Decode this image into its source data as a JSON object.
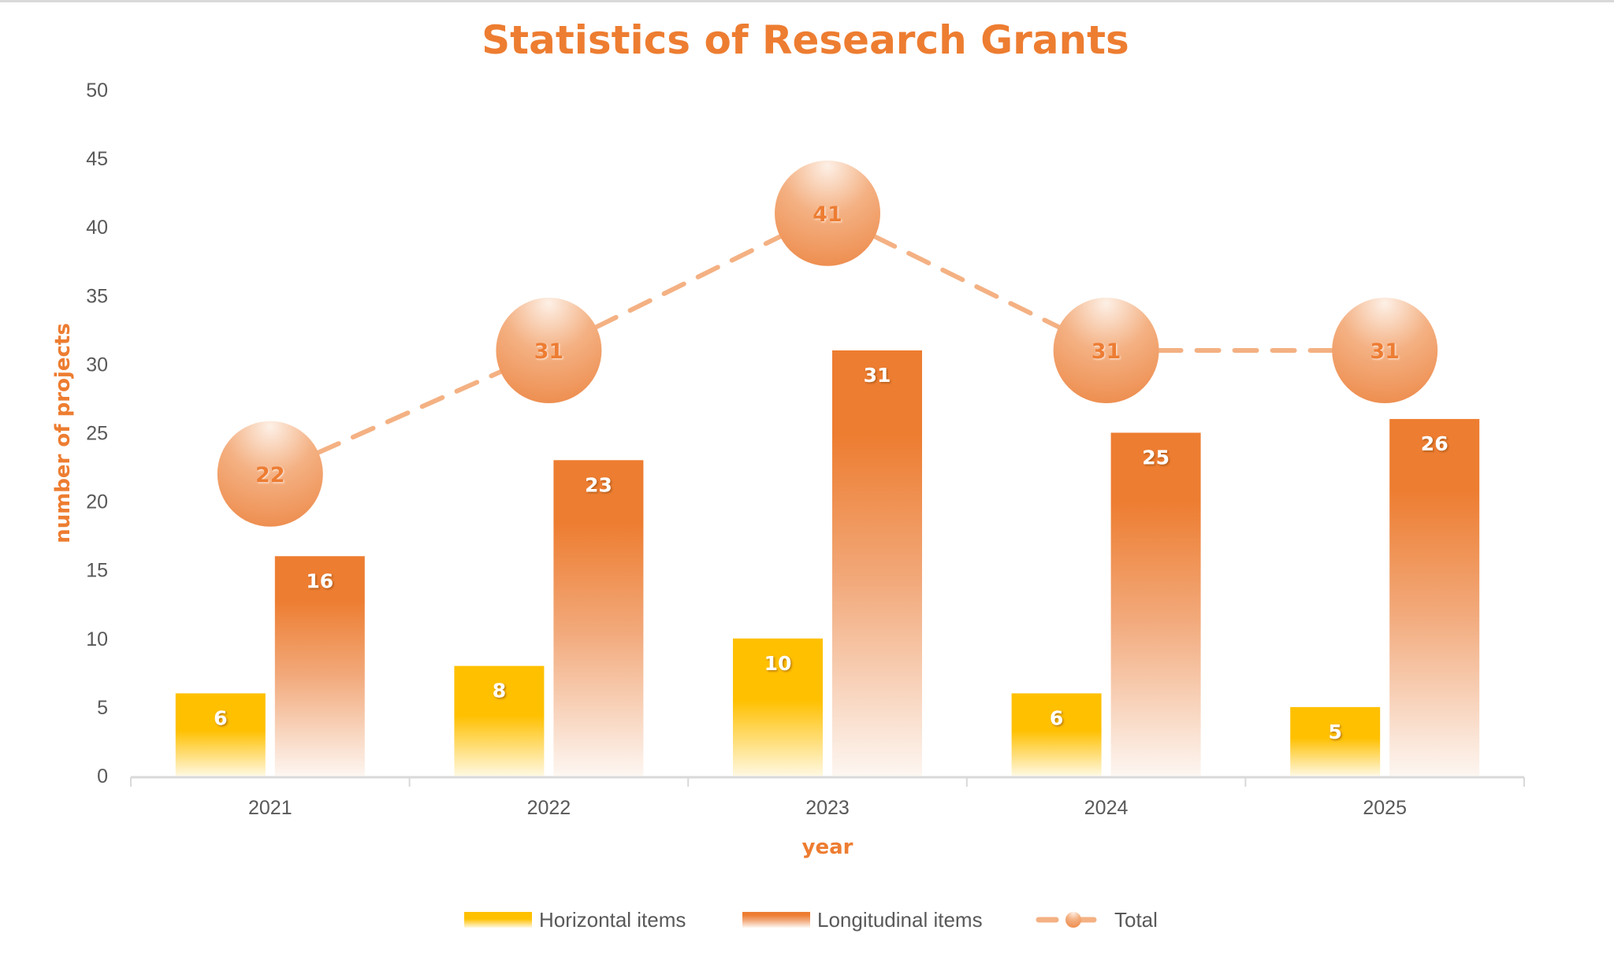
{
  "chart_data": {
    "type": "bar",
    "title": "Statistics of Research Grants",
    "xlabel": "year",
    "ylabel": "number of projects",
    "categories": [
      "2021",
      "2022",
      "2023",
      "2024",
      "2025"
    ],
    "ylim": [
      0,
      50
    ],
    "yticks": [
      0,
      5,
      10,
      15,
      20,
      25,
      30,
      35,
      40,
      45,
      50
    ],
    "grid": false,
    "legend_position": "bottom",
    "series": [
      {
        "name": "Horizontal items",
        "kind": "bar",
        "values": [
          6,
          8,
          10,
          6,
          5
        ],
        "color": "#ffc000"
      },
      {
        "name": "Longitudinal items",
        "kind": "bar",
        "values": [
          16,
          23,
          31,
          25,
          26
        ],
        "color": "#ed7d31"
      },
      {
        "name": "Total",
        "kind": "line",
        "style": "dashed",
        "marker": "circle",
        "values": [
          22,
          31,
          41,
          31,
          31
        ],
        "color": "#f4b183"
      }
    ]
  }
}
